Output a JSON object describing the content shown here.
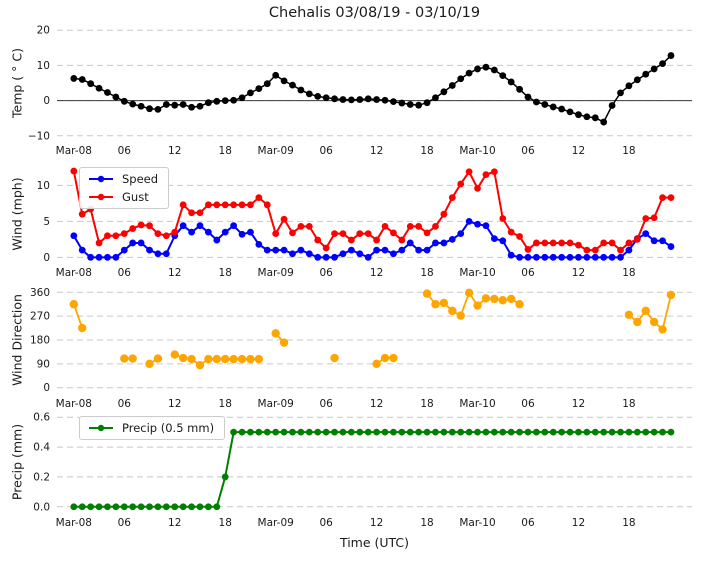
{
  "title": "Chehalis 03/08/19 - 03/10/19",
  "x_axis": {
    "label": "Time (UTC)",
    "xlim": [
      -2,
      73.5
    ],
    "tick_hours": [
      0,
      6,
      12,
      18,
      24,
      30,
      36,
      42,
      48,
      54,
      60,
      66
    ],
    "tick_labels": [
      "Mar-08",
      "06",
      "12",
      "18",
      "Mar-09",
      "06",
      "12",
      "18",
      "Mar-10",
      "06",
      "12",
      "18"
    ]
  },
  "colors": {
    "temp": "#000000",
    "speed": "#0000ff",
    "gust": "#ff0000",
    "wind_direction": "#ffa500",
    "precip": "#008000",
    "grid": "#c9c9c9",
    "zero_line": "#3a3a3a",
    "text": "#1a1a1a"
  },
  "chart_data": [
    {
      "type": "line",
      "ylabel": "Temp ( ° C)",
      "ylim": [
        -11.2,
        21.2
      ],
      "yticks": [
        -10,
        0,
        10,
        20
      ],
      "ytick_labels": [
        "−10",
        "0",
        "10",
        "20"
      ],
      "zero_line": true,
      "grid": "dashed",
      "legend": null,
      "series": [
        {
          "name": "Temp",
          "color": "#000000",
          "values": [
            6.3,
            6.0,
            4.8,
            3.5,
            2.3,
            1.0,
            -0.2,
            -1.0,
            -1.6,
            -2.3,
            -2.5,
            -1.1,
            -1.3,
            -1.1,
            -1.9,
            -1.6,
            -0.6,
            -0.2,
            0.0,
            0.1,
            0.8,
            2.2,
            3.4,
            4.8,
            7.2,
            5.6,
            4.4,
            3.0,
            1.9,
            1.2,
            0.8,
            0.5,
            0.3,
            0.2,
            0.3,
            0.5,
            0.3,
            0.1,
            -0.3,
            -0.7,
            -1.1,
            -1.3,
            -0.6,
            0.8,
            2.5,
            4.3,
            6.2,
            7.8,
            9.0,
            9.5,
            8.7,
            7.1,
            5.3,
            3.2,
            1.0,
            -0.4,
            -1.1,
            -1.8,
            -2.4,
            -3.2,
            -4.0,
            -4.6,
            -4.9,
            -6.1,
            -1.4,
            2.2,
            4.2,
            5.9,
            7.5,
            9.0,
            10.5,
            12.8
          ]
        }
      ]
    },
    {
      "type": "line",
      "ylabel": "Wind (mph)",
      "ylim": [
        -0.65,
        12.7
      ],
      "yticks": [
        0,
        5,
        10
      ],
      "ytick_labels": [
        "0",
        "5",
        "10"
      ],
      "zero_line": false,
      "grid": "dashed",
      "legend": "upper left",
      "series": [
        {
          "name": "Speed",
          "color": "#0000ff",
          "values": [
            3,
            1,
            0,
            0,
            0,
            0,
            1,
            2,
            2,
            1,
            0.5,
            0.5,
            3,
            4.4,
            3.5,
            4.4,
            3.5,
            2.4,
            3.5,
            4.4,
            3.2,
            3.5,
            1.8,
            1,
            1,
            1,
            0.5,
            1,
            0.5,
            0,
            0,
            0,
            0.5,
            1,
            0.5,
            0,
            1,
            1,
            0.5,
            1,
            2,
            1,
            1,
            2,
            2,
            2.5,
            3.3,
            5,
            4.6,
            4.4,
            2.6,
            2.3,
            0.3,
            0,
            0,
            0,
            0,
            0,
            0,
            0,
            0,
            0,
            0,
            0,
            0,
            0,
            1,
            2.6,
            3.3,
            2.3,
            2.3,
            1.5
          ]
        },
        {
          "name": "Gust",
          "color": "#ff0000",
          "values": [
            12,
            6,
            6.7,
            2,
            3,
            3,
            3.3,
            4,
            4.5,
            4.4,
            3.3,
            3,
            3.5,
            7.3,
            6.2,
            6.2,
            7.3,
            7.3,
            7.3,
            7.3,
            7.3,
            7.3,
            8.3,
            7.3,
            3.3,
            5.3,
            3.4,
            4.3,
            4.3,
            2.4,
            1.3,
            3.3,
            3.3,
            2.4,
            3.3,
            3.3,
            2.4,
            4.3,
            3.4,
            2.4,
            4.3,
            4.3,
            3.4,
            4.3,
            6,
            8.3,
            10.2,
            11.9,
            9.6,
            11.5,
            11.9,
            5.4,
            3.5,
            2.9,
            1.1,
            2,
            2,
            2,
            2,
            2,
            1.7,
            1,
            1,
            2,
            2,
            1,
            2,
            2.5,
            5.4,
            5.5,
            8.3,
            8.3
          ]
        }
      ]
    },
    {
      "type": "line",
      "ylabel": "Wind Direction",
      "ylim": [
        -20,
        380
      ],
      "yticks": [
        0,
        90,
        180,
        270,
        360
      ],
      "ytick_labels": [
        "0",
        "90",
        "180",
        "270",
        "360"
      ],
      "zero_line": false,
      "grid": "dashed",
      "legend": null,
      "series": [
        {
          "name": "Wind Direction",
          "color": "#ffa500",
          "values": [
            315,
            225,
            null,
            null,
            null,
            null,
            110,
            110,
            null,
            90,
            110,
            null,
            125,
            112,
            108,
            85,
            108,
            108,
            108,
            108,
            108,
            108,
            108,
            null,
            205,
            170,
            null,
            null,
            null,
            null,
            null,
            112,
            null,
            null,
            null,
            null,
            90,
            112,
            112,
            null,
            null,
            null,
            355,
            315,
            320,
            290,
            272,
            358,
            310,
            337,
            335,
            330,
            335,
            315,
            null,
            null,
            null,
            null,
            null,
            null,
            null,
            null,
            null,
            null,
            null,
            null,
            275,
            248,
            290,
            248,
            220,
            350
          ]
        }
      ]
    },
    {
      "type": "line",
      "ylabel": "Precip (mm)",
      "ylim": [
        -0.035,
        0.635
      ],
      "yticks": [
        0.0,
        0.2,
        0.4,
        0.6
      ],
      "ytick_labels": [
        "0.0",
        "0.2",
        "0.4",
        "0.6"
      ],
      "zero_line": false,
      "grid": "dashed",
      "legend": "upper left",
      "series": [
        {
          "name": "Precip (0.5 mm)",
          "color": "#008000",
          "values": [
            0,
            0,
            0,
            0,
            0,
            0,
            0,
            0,
            0,
            0,
            0,
            0,
            0,
            0,
            0,
            0,
            0,
            0,
            0.2,
            0.5,
            0.5,
            0.5,
            0.5,
            0.5,
            0.5,
            0.5,
            0.5,
            0.5,
            0.5,
            0.5,
            0.5,
            0.5,
            0.5,
            0.5,
            0.5,
            0.5,
            0.5,
            0.5,
            0.5,
            0.5,
            0.5,
            0.5,
            0.5,
            0.5,
            0.5,
            0.5,
            0.5,
            0.5,
            0.5,
            0.5,
            0.5,
            0.5,
            0.5,
            0.5,
            0.5,
            0.5,
            0.5,
            0.5,
            0.5,
            0.5,
            0.5,
            0.5,
            0.5,
            0.5,
            0.5,
            0.5,
            0.5,
            0.5,
            0.5,
            0.5,
            0.5,
            0.5
          ]
        }
      ]
    }
  ]
}
